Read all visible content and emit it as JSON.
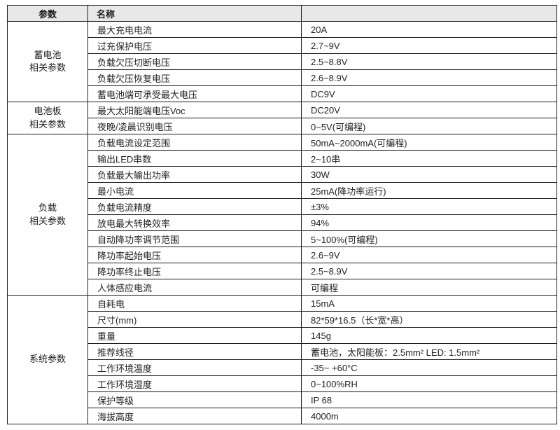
{
  "table": {
    "header": {
      "col_param": "参数",
      "col_name": "名称",
      "col_value": ""
    },
    "groups": [
      {
        "label": "蓄电池\n相关参数",
        "rows": [
          {
            "name": "最大充电电流",
            "value": "20A"
          },
          {
            "name": "过充保护电压",
            "value": "2.7~9V"
          },
          {
            "name": "负载欠压切断电压",
            "value": "2.5~8.8V"
          },
          {
            "name": "负载欠压恢复电压",
            "value": "2.6~8.9V"
          },
          {
            "name": "蓄电池端可承受最大电压",
            "value": "DC9V"
          }
        ]
      },
      {
        "label": "电池板\n相关参数",
        "rows": [
          {
            "name": "最大太阳能端电压Voc",
            "value": "DC20V"
          },
          {
            "name": "夜晚/凌晨识别电压",
            "value": "0~5V(可编程)"
          }
        ]
      },
      {
        "label": "负载\n相关参数",
        "rows": [
          {
            "name": "负载电流设定范围",
            "value": "50mA~2000mA(可编程)"
          },
          {
            "name": "输出LED串数",
            "value": "2~10串"
          },
          {
            "name": "负载最大输出功率",
            "value": "30W"
          },
          {
            "name": "最小电流",
            "value": "25mA(降功率运行)"
          },
          {
            "name": "负载电流精度",
            "value": "±3%"
          },
          {
            "name": "放电最大转换效率",
            "value": "94%"
          },
          {
            "name": "自动降功率调节范围",
            "value": "5~100%(可编程)"
          },
          {
            "name": "降功率起始电压",
            "value": "2.6~9V"
          },
          {
            "name": "降功率终止电压",
            "value": "2.5~8.9V"
          },
          {
            "name": "人体感应电流",
            "value": "可编程"
          }
        ]
      },
      {
        "label": "系统参数",
        "rows": [
          {
            "name": "自耗电",
            "value": "15mA"
          },
          {
            "name": "尺寸(mm)",
            "value": "82*59*16.5（长*宽*高）"
          },
          {
            "name": "重量",
            "value": "145g"
          },
          {
            "name": "推荐线径",
            "value": "蓄电池，太阳能板：2.5mm²   LED: 1.5mm²"
          },
          {
            "name": "工作环境温度",
            "value": "-35~ +60°C"
          },
          {
            "name": "工作环境湿度",
            "value": "0~100%RH"
          },
          {
            "name": "保护等级",
            "value": "IP 68"
          },
          {
            "name": "海拔高度",
            "value": "4000m"
          }
        ]
      }
    ],
    "colors": {
      "header_bg": "#e8e8e8",
      "border": "#1c1c1c",
      "text": "#222222"
    }
  }
}
